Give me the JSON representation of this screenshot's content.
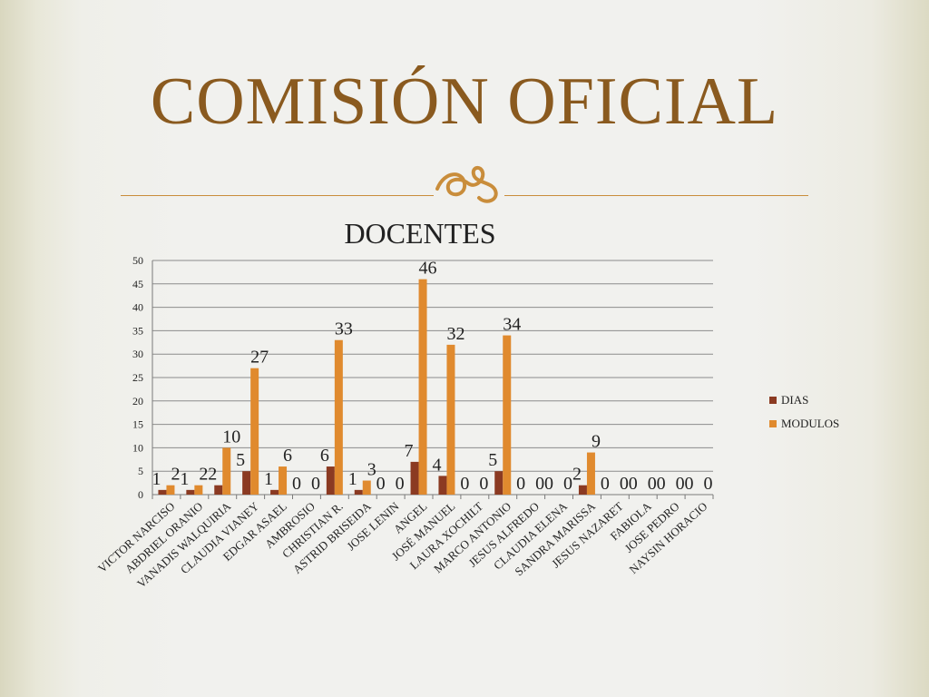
{
  "slide": {
    "title": "COMISIÓN OFICIAL"
  },
  "colors": {
    "title": "#8a5a1f",
    "ornament": "#c98d3b",
    "dias": "#8b3a22",
    "modulos": "#e08a2e"
  },
  "icons": {
    "ornament": "decorative-flourish-icon"
  },
  "chart_data": {
    "type": "bar",
    "title": "DOCENTES",
    "xlabel": "",
    "ylabel": "",
    "ylim": [
      0,
      50
    ],
    "yticks": [
      0,
      5,
      10,
      15,
      20,
      25,
      30,
      35,
      40,
      45,
      50
    ],
    "grid": true,
    "legend_position": "right",
    "categories": [
      "VICTOR NARCISO",
      "ABDRIEL ORANIO",
      "VANADIS WALQUIRIA",
      "CLAUDIA VIANEY",
      "EDGAR ASAEL",
      "AMBROSIO",
      "CHRISTIAN R.",
      "ASTRID BRISEIDA",
      "JOSE LENIN",
      "ANGEL",
      "JOSÉ MANUEL",
      "LAURA XOCHILT",
      "MARCO ANTONIO",
      "JESUS ALFREDO",
      "CLAUDIA ELENA",
      "SANDRA MARISSA",
      "JESUS NAZARET",
      "FABIOLA",
      "JOSE PEDRO",
      "NAYSIN HORACIO"
    ],
    "series": [
      {
        "name": "DIAS",
        "color": "#8b3a22",
        "values": [
          1,
          1,
          2,
          5,
          1,
          0,
          6,
          1,
          0,
          7,
          4,
          0,
          5,
          0,
          0,
          2,
          0,
          0,
          0,
          0
        ]
      },
      {
        "name": "MODULOS",
        "color": "#e08a2e",
        "values": [
          2,
          2,
          10,
          27,
          6,
          0,
          33,
          3,
          0,
          46,
          32,
          0,
          34,
          0,
          0,
          9,
          0,
          0,
          0,
          0
        ]
      }
    ]
  }
}
